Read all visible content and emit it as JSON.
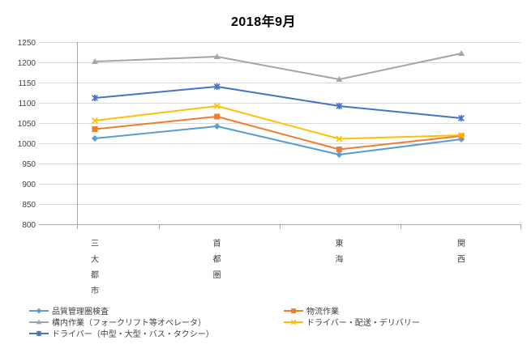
{
  "chart_data": {
    "type": "line",
    "title": "2018年9月",
    "categories": [
      "三大都市",
      "首都圏",
      "東海",
      "関西"
    ],
    "xlabel": "",
    "ylabel": "",
    "ylim": [
      800,
      1250
    ],
    "y_ticks": [
      1250,
      1200,
      1150,
      1100,
      1050,
      1000,
      950,
      900,
      850,
      800
    ],
    "grid": "horizontal",
    "legend_position": "bottom-two-columns",
    "series": [
      {
        "name": "品質管理圏検査",
        "color": "#5B9BD5",
        "marker": "diamond",
        "values": [
          1012,
          1042,
          972,
          1010
        ]
      },
      {
        "name": "物流作業",
        "color": "#ED7D31",
        "marker": "square",
        "values": [
          1035,
          1066,
          985,
          1018
        ]
      },
      {
        "name": "構内作業（フォークリフト等オペレータ）",
        "color": "#A5A5A5",
        "marker": "triangle",
        "values": [
          1202,
          1214,
          1158,
          1222
        ]
      },
      {
        "name": "ドライバー・配送・デリバリー",
        "color": "#FFC000",
        "marker": "x",
        "values": [
          1056,
          1092,
          1011,
          1020
        ]
      },
      {
        "name": "ドライバー（中型・大型・バス・タクシー）",
        "color": "#4472C4",
        "marker": "asterisk",
        "values": [
          1112,
          1140,
          1092,
          1062
        ]
      }
    ],
    "colors": {
      "gridline": "#D9D9D9",
      "axis": "#A6A6A6",
      "text": "#404040",
      "title": "#000000",
      "background": "#FFFFFF"
    }
  }
}
